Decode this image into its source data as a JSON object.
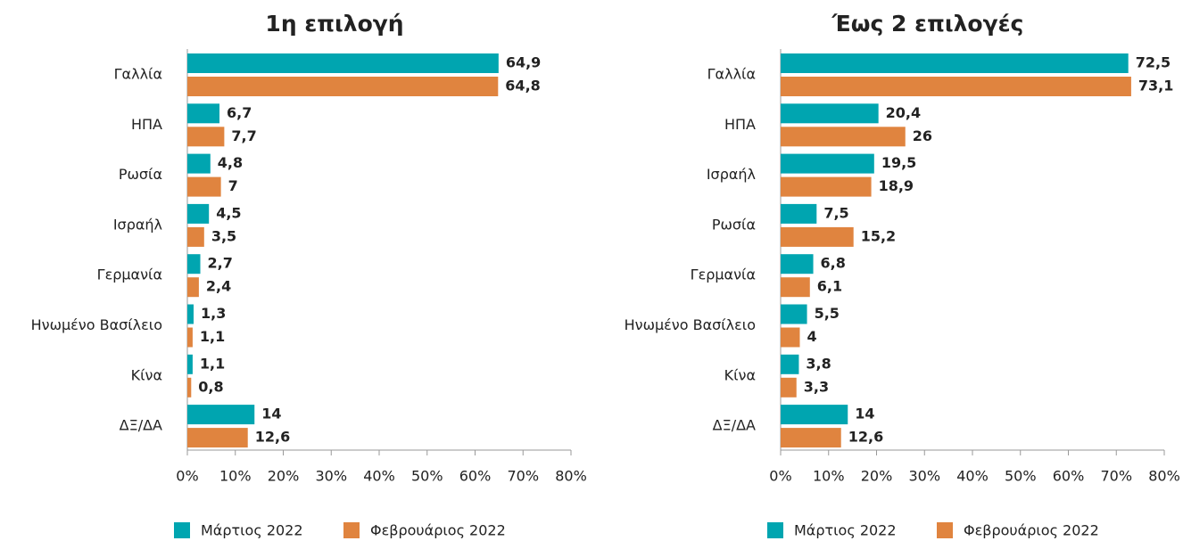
{
  "chart_data": [
    {
      "type": "bar",
      "title": "1η επιλογή",
      "categories": [
        "Γαλλία",
        "ΗΠΑ",
        "Ρωσία",
        "Ισραήλ",
        "Γερμανία",
        "Ηνωμένο Βασίλειο",
        "Κίνα",
        "ΔΞ/ΔΑ"
      ],
      "series": [
        {
          "name": "Μάρτιος 2022",
          "color": "#00a5b0",
          "values": [
            64.9,
            6.7,
            4.8,
            4.5,
            2.7,
            1.3,
            1.1,
            14
          ],
          "value_labels": [
            "64,9",
            "6,7",
            "4,8",
            "4,5",
            "2,7",
            "1,3",
            "1,1",
            "14"
          ]
        },
        {
          "name": "Φεβρουάριος 2022",
          "color": "#e0843f",
          "values": [
            64.8,
            7.7,
            7,
            3.5,
            2.4,
            1.1,
            0.8,
            12.6
          ],
          "value_labels": [
            "64,8",
            "7,7",
            "7",
            "3,5",
            "2,4",
            "1,1",
            "0,8",
            "12,6"
          ]
        }
      ],
      "xlim": [
        0,
        80
      ],
      "xticks": [
        {
          "value": 0,
          "label": "0%"
        },
        {
          "value": 10,
          "label": "10%"
        },
        {
          "value": 20,
          "label": "20%"
        },
        {
          "value": 30,
          "label": "30%"
        },
        {
          "value": 40,
          "label": "40%"
        },
        {
          "value": 50,
          "label": "50%"
        },
        {
          "value": 60,
          "label": "60%"
        },
        {
          "value": 70,
          "label": "70%"
        },
        {
          "value": 80,
          "label": "80%"
        }
      ]
    },
    {
      "type": "bar",
      "title": "Έως 2 επιλογές",
      "categories": [
        "Γαλλία",
        "ΗΠΑ",
        "Ισραήλ",
        "Ρωσία",
        "Γερμανία",
        "Ηνωμένο Βασίλειο",
        "Κίνα",
        "ΔΞ/ΔΑ"
      ],
      "series": [
        {
          "name": "Μάρτιος 2022",
          "color": "#00a5b0",
          "values": [
            72.5,
            20.4,
            19.5,
            7.5,
            6.8,
            5.5,
            3.8,
            14
          ],
          "value_labels": [
            "72,5",
            "20,4",
            "19,5",
            "7,5",
            "6,8",
            "5,5",
            "3,8",
            "14"
          ]
        },
        {
          "name": "Φεβρουάριος 2022",
          "color": "#e0843f",
          "values": [
            73.1,
            26,
            18.9,
            15.2,
            6.1,
            4,
            3.3,
            12.6
          ],
          "value_labels": [
            "73,1",
            "26",
            "18,9",
            "15,2",
            "6,1",
            "4",
            "3,3",
            "12,6"
          ]
        }
      ],
      "xlim": [
        0,
        80
      ],
      "xticks": [
        {
          "value": 0,
          "label": "0%"
        },
        {
          "value": 10,
          "label": "10%"
        },
        {
          "value": 20,
          "label": "20%"
        },
        {
          "value": 30,
          "label": "30%"
        },
        {
          "value": 40,
          "label": "40%"
        },
        {
          "value": 50,
          "label": "50%"
        },
        {
          "value": 60,
          "label": "60%"
        },
        {
          "value": 70,
          "label": "70%"
        },
        {
          "value": 80,
          "label": "80%"
        }
      ]
    }
  ]
}
